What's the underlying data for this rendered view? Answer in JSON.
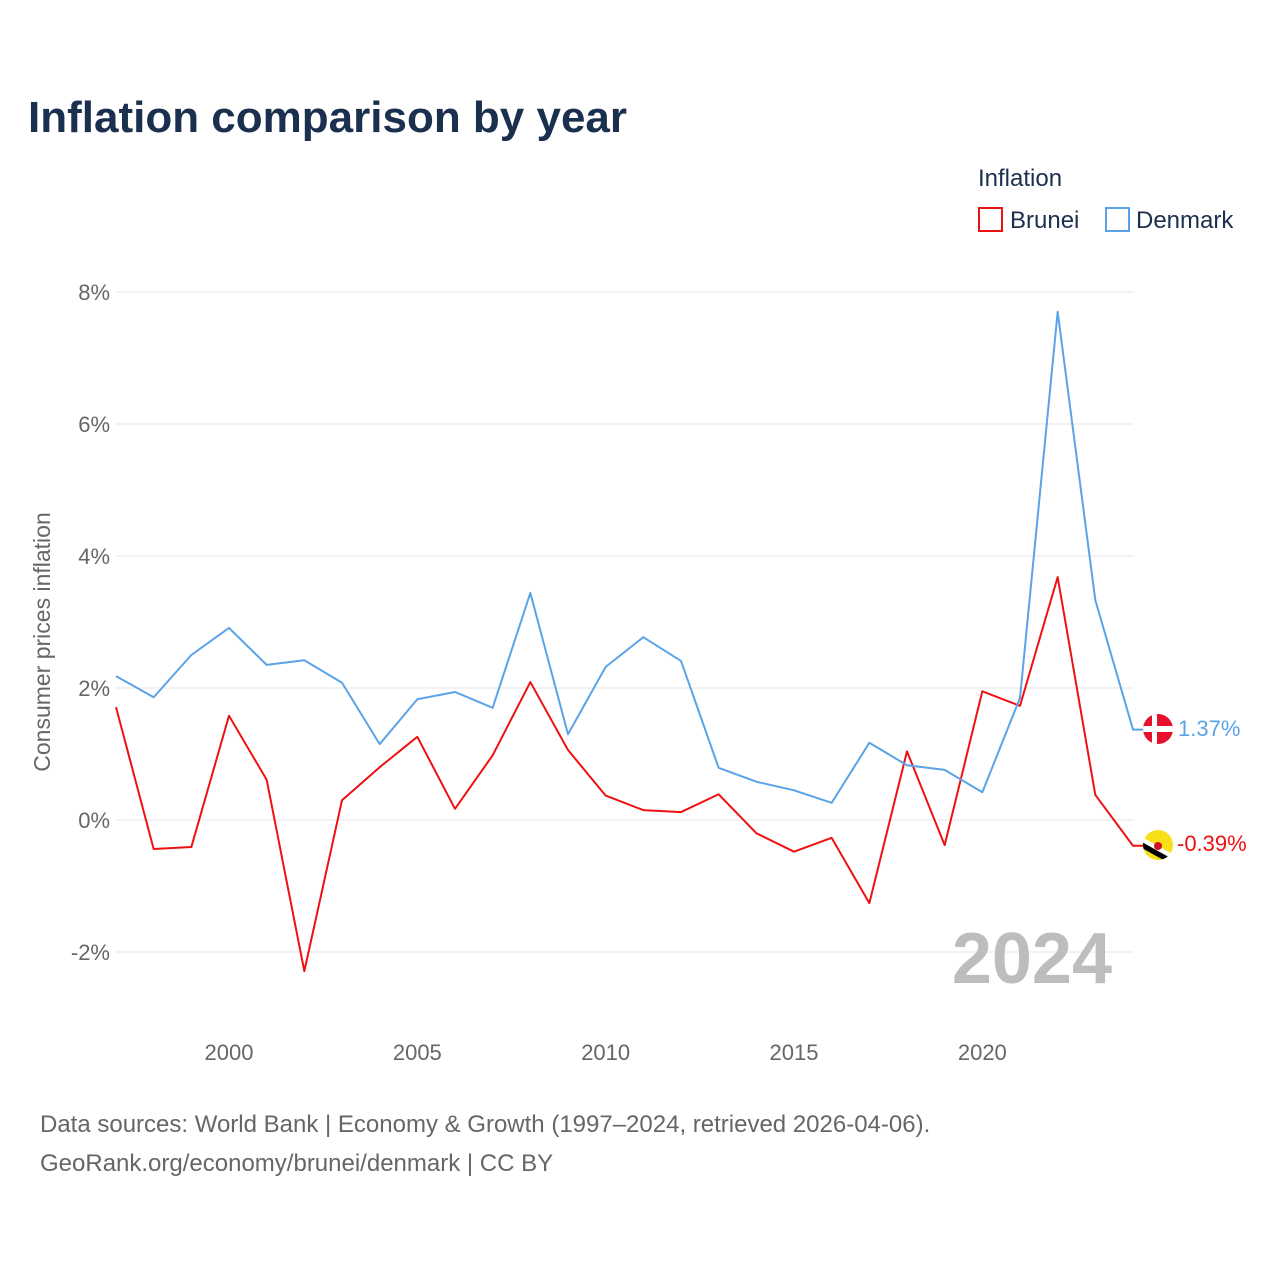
{
  "chart_data": {
    "type": "line",
    "title": "Inflation comparison by year",
    "xlabel": "",
    "ylabel": "Consumer prices inflation",
    "xlim": [
      1997,
      2024
    ],
    "ylim": [
      -3,
      8.5
    ],
    "x_ticks": [
      2000,
      2005,
      2010,
      2015,
      2020
    ],
    "x_tick_labels": [
      "2000",
      "2005",
      "2010",
      "2015",
      "2020"
    ],
    "y_ticks": [
      -2,
      0,
      2,
      4,
      6,
      8
    ],
    "y_tick_labels": [
      "-2%",
      "0%",
      "2%",
      "4%",
      "6%",
      "8%"
    ],
    "grid": true,
    "legend": {
      "title": "Inflation",
      "placement": "top-right",
      "entries": [
        "Brunei",
        "Denmark"
      ]
    },
    "x": [
      1997,
      1998,
      1999,
      2000,
      2001,
      2002,
      2003,
      2004,
      2005,
      2006,
      2007,
      2008,
      2009,
      2010,
      2011,
      2012,
      2013,
      2014,
      2015,
      2016,
      2017,
      2018,
      2019,
      2020,
      2021,
      2022,
      2023,
      2024
    ],
    "series": [
      {
        "name": "Brunei",
        "color": "#ee1111",
        "end_label": "-0.39%",
        "values": [
          1.71,
          -0.44,
          -0.41,
          1.58,
          0.61,
          -2.29,
          0.3,
          0.8,
          1.26,
          0.17,
          0.98,
          2.09,
          1.06,
          0.37,
          0.15,
          0.12,
          0.39,
          -0.2,
          -0.48,
          -0.27,
          -1.26,
          1.04,
          -0.38,
          1.95,
          1.73,
          3.68,
          0.38,
          -0.39
        ]
      },
      {
        "name": "Denmark",
        "color": "#5ba3e8",
        "end_label": "1.37%",
        "values": [
          2.18,
          1.86,
          2.5,
          2.91,
          2.35,
          2.42,
          2.08,
          1.15,
          1.83,
          1.94,
          1.7,
          3.44,
          1.3,
          2.32,
          2.77,
          2.41,
          0.79,
          0.58,
          0.45,
          0.26,
          1.17,
          0.83,
          0.76,
          0.42,
          1.85,
          7.7,
          3.33,
          1.37
        ]
      }
    ],
    "annotation": "2024"
  },
  "source": {
    "line1": "Data sources: World Bank | Economy & Growth (1997–2024, retrieved 2026-04-06).",
    "line2": "GeoRank.org/economy/brunei/denmark | CC BY"
  }
}
